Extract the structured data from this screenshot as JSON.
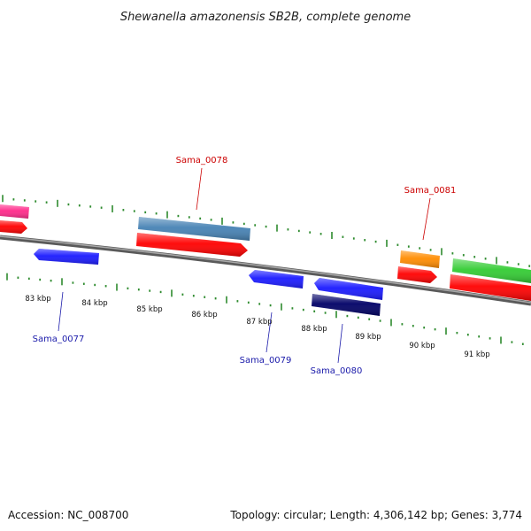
{
  "title": "Shewanella amazonensis SB2B, complete genome",
  "footer": {
    "accession": "Accession: NC_008700",
    "summary": "Topology: circular; Length: 4,306,142 bp; Genes: 3,774"
  },
  "scale": {
    "labels": [
      "83 kbp",
      "84 kbp",
      "85 kbp",
      "86 kbp",
      "87 kbp",
      "88 kbp",
      "89 kbp",
      "90 kbp",
      "91 kbp"
    ]
  },
  "genes": [
    {
      "name": "",
      "strand": "plus",
      "color": "#ff2a8a"
    },
    {
      "name": "",
      "strand": "plus",
      "color": "#ff0000"
    },
    {
      "name": "Sama_0077",
      "strand": "minus",
      "color": "#1a1aff",
      "label_color": "#1a1aaa"
    },
    {
      "name": "Sama_0078",
      "strand": "plus",
      "color": "#4682b4",
      "label_color": "#cc0000"
    },
    {
      "name": "",
      "strand": "plus",
      "color": "#ff0000"
    },
    {
      "name": "Sama_0079",
      "strand": "minus",
      "color": "#1a1aff",
      "label_color": "#1a1aaa"
    },
    {
      "name": "",
      "strand": "minus",
      "color": "#1a1aff"
    },
    {
      "name": "Sama_0080",
      "strand": "minus",
      "color": "#000066",
      "label_color": "#1a1aaa"
    },
    {
      "name": "Sama_0081",
      "strand": "plus",
      "color": "#ff8c00",
      "label_color": "#cc0000"
    },
    {
      "name": "",
      "strand": "plus",
      "color": "#ff0000"
    },
    {
      "name": "",
      "strand": "plus",
      "color": "#33cc33"
    },
    {
      "name": "",
      "strand": "plus",
      "color": "#ff0000"
    }
  ],
  "colors": {
    "backbone": "#808080",
    "tick": "#2e8b2e"
  }
}
